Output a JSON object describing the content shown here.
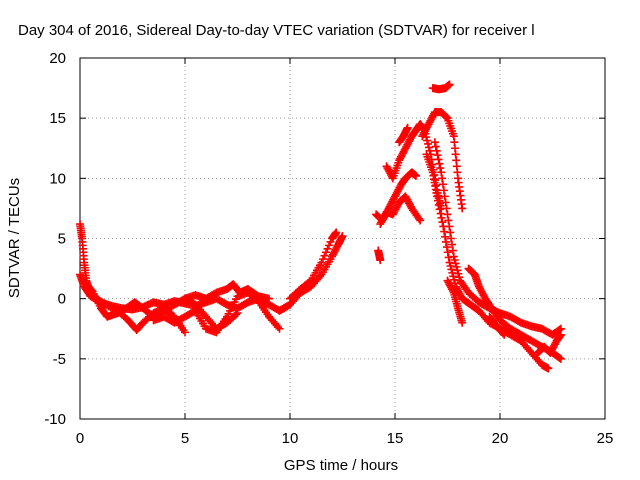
{
  "chart_data": {
    "type": "scatter",
    "title": "Day 304 of 2016, Sidereal Day-to-day VTEC variation (SDTVAR) for receiver l",
    "xlabel": "GPS time / hours",
    "ylabel": "SDTVAR / TECUs",
    "xlim": [
      0,
      25
    ],
    "ylim": [
      -10,
      20
    ],
    "xticks": [
      0,
      5,
      10,
      15,
      20,
      25
    ],
    "yticks": [
      -10,
      -5,
      0,
      5,
      10,
      15,
      20
    ],
    "xtick_labels": [
      "0",
      "5",
      "10",
      "15",
      "20",
      "25"
    ],
    "ytick_labels": [
      "-10",
      "-5",
      "0",
      "5",
      "10",
      "15",
      "20"
    ],
    "grid": true,
    "legend": "none",
    "marker": "plus",
    "color": "#ff0000",
    "tracks": [
      [
        [
          0.0,
          6.2
        ],
        [
          0.1,
          5.0
        ],
        [
          0.2,
          3.0
        ],
        [
          0.3,
          1.5
        ],
        [
          0.5,
          0.5
        ],
        [
          0.8,
          0.0
        ],
        [
          1.2,
          -0.5
        ],
        [
          1.8,
          -1.0
        ],
        [
          2.3,
          -1.8
        ],
        [
          2.7,
          -2.6
        ],
        [
          3.0,
          -2.0
        ],
        [
          3.5,
          -1.2
        ],
        [
          4.0,
          -0.8
        ],
        [
          4.5,
          -1.5
        ],
        [
          5.0,
          -2.8
        ]
      ],
      [
        [
          0.0,
          2.0
        ],
        [
          0.2,
          1.0
        ],
        [
          0.5,
          0.2
        ],
        [
          1.0,
          -0.3
        ],
        [
          1.5,
          -0.6
        ],
        [
          2.0,
          -0.8
        ],
        [
          2.5,
          -0.9
        ],
        [
          3.0,
          -0.7
        ],
        [
          3.5,
          -0.3
        ],
        [
          4.0,
          -0.5
        ],
        [
          4.5,
          -0.2
        ],
        [
          5.0,
          -0.4
        ],
        [
          5.5,
          -0.6
        ],
        [
          6.0,
          -0.3
        ],
        [
          6.5,
          0.0
        ],
        [
          7.0,
          -0.5
        ],
        [
          7.5,
          -0.8
        ],
        [
          8.0,
          -0.3
        ],
        [
          8.5,
          0.0
        ],
        [
          9.0,
          -0.5
        ],
        [
          9.5,
          -1.0
        ],
        [
          10.0,
          -0.5
        ]
      ],
      [
        [
          0.3,
          1.2
        ],
        [
          0.6,
          0.6
        ],
        [
          1.0,
          -0.8
        ],
        [
          1.3,
          -1.5
        ],
        [
          1.8,
          -1.2
        ],
        [
          2.2,
          -0.8
        ],
        [
          2.6,
          -0.3
        ],
        [
          3.0,
          -0.8
        ],
        [
          3.5,
          -1.5
        ],
        [
          4.0,
          -1.0
        ],
        [
          4.5,
          -0.5
        ],
        [
          5.0,
          0.0
        ],
        [
          5.5,
          -0.5
        ],
        [
          6.0,
          -1.5
        ],
        [
          6.5,
          -2.5
        ],
        [
          7.0,
          -2.0
        ],
        [
          7.5,
          -1.2
        ]
      ],
      [
        [
          3.5,
          -1.8
        ],
        [
          4.0,
          -1.5
        ],
        [
          4.5,
          -2.0
        ],
        [
          5.0,
          -1.5
        ],
        [
          5.5,
          -1.0
        ],
        [
          6.0,
          -2.5
        ],
        [
          6.5,
          -2.8
        ],
        [
          7.0,
          -1.5
        ],
        [
          7.5,
          0.2
        ],
        [
          8.0,
          0.5
        ],
        [
          8.5,
          -0.2
        ],
        [
          9.0,
          -1.5
        ],
        [
          9.5,
          -2.5
        ]
      ],
      [
        [
          5.0,
          0.0
        ],
        [
          5.5,
          0.3
        ],
        [
          6.0,
          0.0
        ],
        [
          6.5,
          0.5
        ],
        [
          7.0,
          0.8
        ],
        [
          7.3,
          1.2
        ],
        [
          7.6,
          0.5
        ],
        [
          8.0,
          0.8
        ],
        [
          8.5,
          0.2
        ],
        [
          9.0,
          0.0
        ]
      ],
      [
        [
          9.5,
          -1.0
        ],
        [
          10.0,
          -0.5
        ],
        [
          10.5,
          0.5
        ],
        [
          11.0,
          1.0
        ],
        [
          11.5,
          2.0
        ],
        [
          12.0,
          3.5
        ],
        [
          12.3,
          4.5
        ],
        [
          12.5,
          5.2
        ]
      ],
      [
        [
          10.0,
          0.0
        ],
        [
          10.5,
          0.8
        ],
        [
          11.0,
          1.5
        ],
        [
          11.5,
          3.0
        ],
        [
          12.0,
          5.0
        ],
        [
          12.2,
          5.5
        ]
      ],
      [
        [
          14.2,
          4.0
        ],
        [
          14.3,
          3.2
        ]
      ],
      [
        [
          14.1,
          7.0
        ],
        [
          14.4,
          6.5
        ],
        [
          14.7,
          7.5
        ],
        [
          15.0,
          8.5
        ],
        [
          15.3,
          9.5
        ],
        [
          15.5,
          10.0
        ],
        [
          15.8,
          10.5
        ],
        [
          16.0,
          10.2
        ]
      ],
      [
        [
          14.3,
          6.2
        ],
        [
          14.6,
          7.2
        ],
        [
          14.9,
          7.0
        ],
        [
          15.2,
          8.0
        ],
        [
          15.5,
          8.5
        ],
        [
          15.8,
          7.5
        ],
        [
          16.2,
          6.5
        ]
      ],
      [
        [
          14.6,
          11.0
        ],
        [
          14.9,
          10.0
        ],
        [
          15.2,
          11.5
        ],
        [
          15.5,
          12.5
        ],
        [
          15.8,
          13.5
        ],
        [
          16.0,
          14.0
        ],
        [
          16.2,
          14.5
        ],
        [
          16.4,
          14.0
        ],
        [
          16.7,
          12.0
        ],
        [
          17.0,
          9.0
        ],
        [
          17.2,
          7.5
        ]
      ],
      [
        [
          15.2,
          13.0
        ],
        [
          15.4,
          13.5
        ],
        [
          15.6,
          14.2
        ]
      ],
      [
        [
          16.3,
          13.5
        ],
        [
          16.6,
          14.5
        ],
        [
          16.9,
          15.5
        ],
        [
          17.2,
          15.5
        ],
        [
          17.5,
          15.0
        ],
        [
          17.8,
          13.5
        ],
        [
          18.0,
          10.0
        ],
        [
          18.2,
          7.5
        ]
      ],
      [
        [
          16.8,
          17.5
        ],
        [
          17.1,
          17.4
        ],
        [
          17.4,
          17.5
        ],
        [
          17.6,
          17.8
        ]
      ],
      [
        [
          16.5,
          12.0
        ],
        [
          16.8,
          10.5
        ],
        [
          17.0,
          8.5
        ],
        [
          17.3,
          6.0
        ],
        [
          17.6,
          3.0
        ],
        [
          17.9,
          1.0
        ],
        [
          18.2,
          0.0
        ],
        [
          18.6,
          -0.5
        ],
        [
          19.0,
          -1.0
        ],
        [
          19.5,
          -2.0
        ],
        [
          20.0,
          -2.5
        ],
        [
          20.5,
          -3.0
        ],
        [
          21.0,
          -3.5
        ],
        [
          21.5,
          -4.5
        ],
        [
          22.0,
          -5.5
        ],
        [
          22.3,
          -5.8
        ]
      ],
      [
        [
          16.9,
          13.0
        ],
        [
          17.2,
          10.5
        ],
        [
          17.5,
          7.0
        ],
        [
          17.8,
          3.5
        ],
        [
          18.1,
          1.5
        ],
        [
          18.5,
          0.5
        ],
        [
          19.0,
          -0.3
        ],
        [
          19.5,
          -0.8
        ],
        [
          20.0,
          -1.2
        ],
        [
          20.5,
          -1.5
        ],
        [
          21.0,
          -2.0
        ],
        [
          21.5,
          -2.3
        ],
        [
          22.0,
          -2.5
        ],
        [
          22.5,
          -3.0
        ],
        [
          22.9,
          -2.5
        ]
      ],
      [
        [
          18.5,
          2.5
        ],
        [
          18.8,
          2.0
        ],
        [
          19.0,
          1.0
        ],
        [
          19.3,
          0.0
        ],
        [
          19.6,
          -0.8
        ],
        [
          20.0,
          -1.8
        ],
        [
          20.5,
          -2.5
        ],
        [
          21.0,
          -3.0
        ],
        [
          21.5,
          -3.5
        ],
        [
          22.0,
          -4.0
        ],
        [
          22.5,
          -4.5
        ],
        [
          22.9,
          -5.0
        ]
      ],
      [
        [
          17.5,
          1.5
        ],
        [
          17.8,
          0.5
        ],
        [
          18.0,
          -0.8
        ],
        [
          18.2,
          -2.0
        ]
      ],
      [
        [
          19.5,
          -1.5
        ],
        [
          19.8,
          -2.2
        ],
        [
          20.2,
          -3.0
        ]
      ],
      [
        [
          21.8,
          -4.5
        ],
        [
          22.1,
          -4.0
        ],
        [
          22.4,
          -4.5
        ],
        [
          22.7,
          -3.5
        ],
        [
          22.9,
          -3.0
        ]
      ]
    ]
  }
}
